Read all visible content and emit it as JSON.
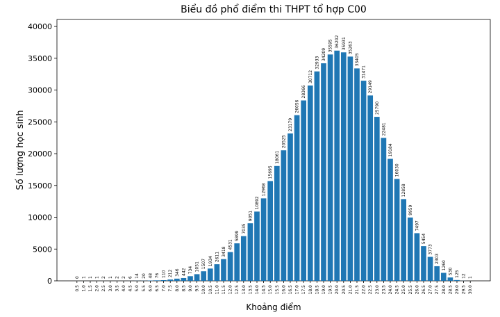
{
  "chart_data": {
    "type": "bar",
    "title": "Biểu đồ phổ điểm thi THPT tổ hợp C00",
    "x_label": "Khoảng điểm",
    "y_label": "Số lượng học sinh",
    "categories": [
      "0.5",
      "1.0",
      "1.5",
      "2.0",
      "2.5",
      "3.0",
      "3.5",
      "4.0",
      "4.5",
      "5.0",
      "5.5",
      "6.0",
      "6.5",
      "7.0",
      "7.5",
      "8.0",
      "8.5",
      "9.0",
      "9.5",
      "10.0",
      "10.5",
      "11.0",
      "11.5",
      "12.0",
      "12.5",
      "13.0",
      "13.5",
      "14.0",
      "14.5",
      "15.0",
      "15.5",
      "16.0",
      "16.5",
      "17.0",
      "17.5",
      "18.0",
      "18.5",
      "19.0",
      "19.5",
      "20.0",
      "20.5",
      "21.0",
      "21.5",
      "22.0",
      "22.5",
      "23.0",
      "23.5",
      "24.0",
      "24.5",
      "25.0",
      "25.5",
      "26.0",
      "26.5",
      "27.0",
      "27.5",
      "28.0",
      "28.5",
      "29.0",
      "29.5",
      "30.0"
    ],
    "values": [
      0,
      1,
      1,
      1,
      2,
      1,
      2,
      2,
      6,
      14,
      20,
      48,
      76,
      110,
      212,
      346,
      442,
      734,
      1051,
      1507,
      1934,
      2611,
      3418,
      4531,
      5899,
      7035,
      9051,
      10892,
      12968,
      15695,
      18061,
      20525,
      23179,
      26056,
      28366,
      30712,
      32933,
      34209,
      35595,
      36202,
      35931,
      35263,
      33405,
      31471,
      29149,
      25790,
      22481,
      19184,
      16030,
      12858,
      9959,
      7497,
      5454,
      3773,
      2303,
      1260,
      530,
      125,
      12,
      1
    ],
    "color": "#1f77b4",
    "ylim": [
      0,
      41100
    ],
    "yticks": [
      0,
      5000,
      10000,
      15000,
      20000,
      25000,
      30000,
      35000,
      40000
    ],
    "grid": false
  }
}
